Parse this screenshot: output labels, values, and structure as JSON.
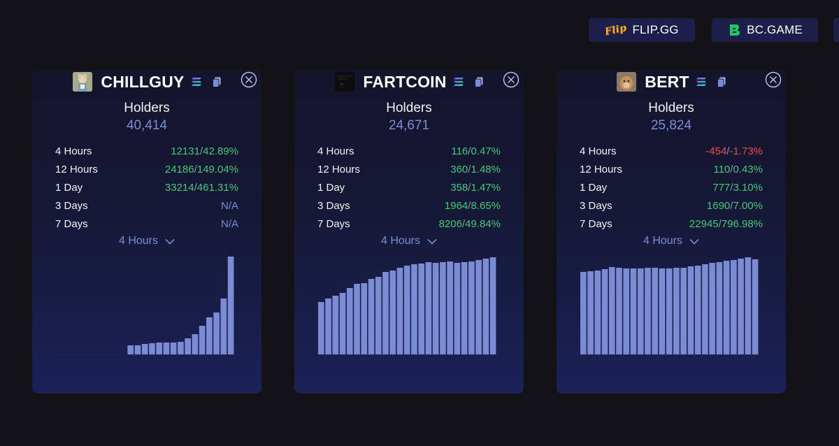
{
  "sponsors": [
    {
      "label": "FLIP.GG",
      "logo_text": "Flip"
    },
    {
      "label": "BC.GAME"
    }
  ],
  "colors": {
    "background": "#131217",
    "card": "#161a3e",
    "accent": "#7d8cd6",
    "positive": "#48c77a",
    "negative": "#f04a4a",
    "bar": "#7b8cd4"
  },
  "cards": [
    {
      "name": "CHILLGUY",
      "holders_label": "Holders",
      "holders": "40,414",
      "period": "4 Hours",
      "stats": [
        {
          "label": "4 Hours",
          "value": "12131/42.89%",
          "sign": "pos"
        },
        {
          "label": "12 Hours",
          "value": "24186/149.04%",
          "sign": "pos"
        },
        {
          "label": "1 Day",
          "value": "33214/461.31%",
          "sign": "pos"
        },
        {
          "label": "3 Days",
          "value": "N/A",
          "sign": "na"
        },
        {
          "label": "7 Days",
          "value": "N/A",
          "sign": "na"
        }
      ],
      "chart_data": {
        "type": "bar",
        "values": [
          0,
          0,
          0,
          0,
          0,
          0,
          0,
          0,
          0,
          0,
          13,
          13,
          15,
          16,
          17,
          17,
          17,
          18,
          23,
          29,
          41,
          53,
          60,
          80,
          140
        ]
      }
    },
    {
      "name": "FARTCOIN",
      "holders_label": "Holders",
      "holders": "24,671",
      "period": "4 Hours",
      "stats": [
        {
          "label": "4 Hours",
          "value": "116/0.47%",
          "sign": "pos"
        },
        {
          "label": "12 Hours",
          "value": "360/1.48%",
          "sign": "pos"
        },
        {
          "label": "1 Day",
          "value": "358/1.47%",
          "sign": "pos"
        },
        {
          "label": "3 Days",
          "value": "1964/8.65%",
          "sign": "pos"
        },
        {
          "label": "7 Days",
          "value": "8206/49.84%",
          "sign": "pos"
        }
      ],
      "chart_data": {
        "type": "bar",
        "values": [
          75,
          80,
          84,
          88,
          95,
          101,
          102,
          108,
          111,
          118,
          120,
          124,
          127,
          129,
          130,
          132,
          131,
          132,
          133,
          131,
          132,
          133,
          135,
          137,
          139
        ]
      }
    },
    {
      "name": "BERT",
      "holders_label": "Holders",
      "holders": "25,824",
      "period": "4 Hours",
      "stats": [
        {
          "label": "4 Hours",
          "value": "-454/-1.73%",
          "sign": "neg"
        },
        {
          "label": "12 Hours",
          "value": "110/0.43%",
          "sign": "pos"
        },
        {
          "label": "1 Day",
          "value": "777/3.10%",
          "sign": "pos"
        },
        {
          "label": "3 Days",
          "value": "1690/7.00%",
          "sign": "pos"
        },
        {
          "label": "7 Days",
          "value": "22945/796.98%",
          "sign": "pos"
        }
      ],
      "chart_data": {
        "type": "bar",
        "values": [
          118,
          119,
          120,
          122,
          125,
          124,
          123,
          123,
          123,
          124,
          124,
          123,
          123,
          124,
          124,
          126,
          127,
          129,
          131,
          132,
          134,
          135,
          137,
          139,
          136
        ]
      }
    }
  ]
}
